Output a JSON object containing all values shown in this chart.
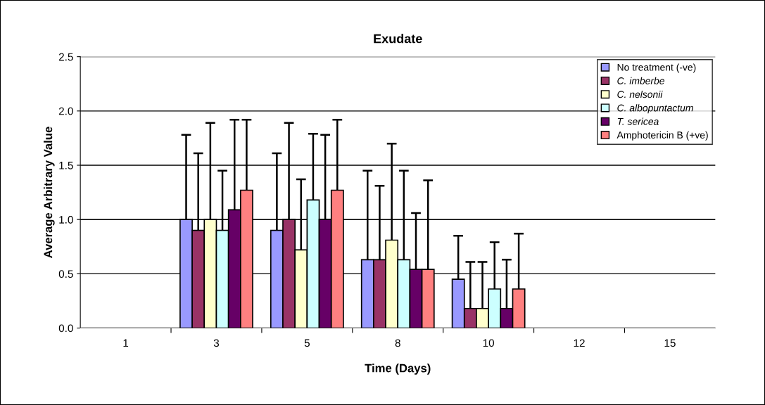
{
  "chart_data": {
    "type": "bar",
    "title": "Exudate",
    "xlabel": "Time (Days)",
    "ylabel": "Average Arbitrary Value",
    "categories": [
      "1",
      "3",
      "5",
      "8",
      "10",
      "12",
      "15"
    ],
    "ylim": [
      0,
      2.5
    ],
    "yticks": [
      {
        "value": 0,
        "label": "0.0"
      },
      {
        "value": 0.5,
        "label": "0.5"
      },
      {
        "value": 1,
        "label": "1.0"
      },
      {
        "value": 1.5,
        "label": "1.5"
      },
      {
        "value": 2,
        "label": "2.0"
      },
      {
        "value": 2.5,
        "label": "2.5"
      }
    ],
    "grid": "y",
    "legend": "top right",
    "series": [
      {
        "name": "No treatment (-ve)",
        "color": "#9999ff",
        "values": [
          0,
          1.0,
          0.9,
          0.63,
          0.45,
          0,
          0
        ],
        "errors": [
          null,
          [
            1.0,
            1.78
          ],
          [
            0.9,
            1.61
          ],
          [
            0.63,
            1.45
          ],
          [
            0.45,
            0.85
          ],
          null,
          null
        ]
      },
      {
        "name": "C. imberbe",
        "color": "#993366",
        "values": [
          0,
          0.9,
          1.0,
          0.63,
          0.18,
          0,
          0
        ],
        "errors": [
          null,
          [
            0.9,
            1.61
          ],
          [
            1.0,
            1.89
          ],
          [
            0.63,
            1.31
          ],
          [
            0.18,
            0.61
          ],
          null,
          null
        ]
      },
      {
        "name": "C. nelsonii",
        "color": "#ffffcc",
        "values": [
          0,
          1.0,
          0.72,
          0.81,
          0.18,
          0,
          0
        ],
        "errors": [
          null,
          [
            1.0,
            1.89
          ],
          [
            0.72,
            1.37
          ],
          [
            0.81,
            1.7
          ],
          [
            0.18,
            0.61
          ],
          null,
          null
        ]
      },
      {
        "name": "C. albopuntactum",
        "color": "#ccffff",
        "values": [
          0,
          0.9,
          1.18,
          0.63,
          0.36,
          0,
          0
        ],
        "errors": [
          null,
          [
            0.9,
            1.45
          ],
          [
            1.18,
            1.79
          ],
          [
            0.63,
            1.45
          ],
          [
            0.36,
            0.79
          ],
          null,
          null
        ]
      },
      {
        "name": "T. sericea",
        "color": "#660066",
        "values": [
          0,
          1.09,
          1.0,
          0.54,
          0.18,
          0,
          0
        ],
        "errors": [
          null,
          [
            1.09,
            1.92
          ],
          [
            1.0,
            1.78
          ],
          [
            0.54,
            1.06
          ],
          [
            0.18,
            0.63
          ],
          null,
          null
        ]
      },
      {
        "name": "Amphotericin B (+ve)",
        "color": "#ff8080",
        "values": [
          0,
          1.27,
          1.27,
          0.54,
          0.36,
          0,
          0
        ],
        "errors": [
          null,
          [
            1.27,
            1.92
          ],
          [
            1.27,
            1.92
          ],
          [
            0.54,
            1.36
          ],
          [
            0.36,
            0.87
          ],
          null,
          null
        ]
      }
    ]
  }
}
